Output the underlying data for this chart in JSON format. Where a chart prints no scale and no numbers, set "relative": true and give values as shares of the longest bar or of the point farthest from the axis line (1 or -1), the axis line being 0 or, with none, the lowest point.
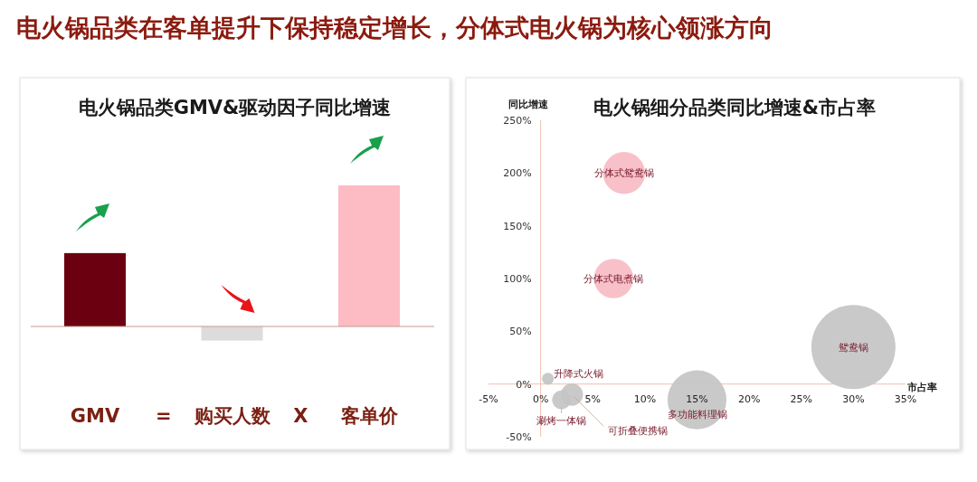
{
  "chart_data": [
    {
      "type": "bar",
      "title": "电火锅品类GMV&驱动因子同比增速",
      "categories": [
        "GMV",
        "购买人数",
        "客单价"
      ],
      "values": [
        0.52,
        -0.1,
        1
      ],
      "colors": [
        "#6b0011",
        "#dcdcdc",
        "#fdbcc4"
      ],
      "relative": true,
      "ref_lines": [
        {
          "axis": "y",
          "value": 0,
          "color": "#c49a8e"
        }
      ],
      "annotations": [
        "电火锅品类在客单提升下保持稳定增长，分体式电火锅为核心领涨方向",
        "=",
        "X"
      ]
    },
    {
      "type": "bubble",
      "title": "电火锅细分品类同比增速&市占率",
      "xlabel": "市占率",
      "ylabel": "同比增速",
      "xlim": [
        -5,
        35
      ],
      "xticks": [
        {
          "value": -5,
          "label": "-5%"
        },
        {
          "value": 0,
          "label": "0%"
        },
        {
          "value": 5,
          "label": "5%"
        },
        {
          "value": 10,
          "label": "10%"
        },
        {
          "value": 15,
          "label": "15%"
        },
        {
          "value": 20,
          "label": "20%"
        },
        {
          "value": 25,
          "label": "25%"
        },
        {
          "value": 30,
          "label": "30%"
        },
        {
          "value": 35,
          "label": "35%"
        }
      ],
      "ylim": [
        -50,
        250
      ],
      "yticks": [
        {
          "value": -50,
          "label": "-50%"
        },
        {
          "value": 0,
          "label": "0%"
        },
        {
          "value": 50,
          "label": "50%"
        },
        {
          "value": 100,
          "label": "100%"
        },
        {
          "value": 150,
          "label": "150%"
        },
        {
          "value": 200,
          "label": "200%"
        },
        {
          "value": 250,
          "label": "250%"
        }
      ],
      "series": [
        {
          "name": "分体式鸳鸯锅",
          "color": "#f7bcc4",
          "x": [
            8
          ],
          "values": [
            200
          ],
          "sizes": [
            0.25
          ]
        },
        {
          "name": "分体式电煮锅",
          "color": "#f7bcc4",
          "x": [
            7
          ],
          "values": [
            100
          ],
          "sizes": [
            0.22
          ]
        },
        {
          "name": "鸳鸯锅",
          "color": "#c4c4c4",
          "x": [
            30
          ],
          "values": [
            35
          ],
          "sizes": [
            1
          ]
        },
        {
          "name": "多功能料理锅",
          "color": "#c4c4c4",
          "x": [
            15
          ],
          "values": [
            -15
          ],
          "sizes": [
            0.49
          ]
        },
        {
          "name": "升降式火锅",
          "color": "#c4c4c4",
          "x": [
            0.7
          ],
          "values": [
            5
          ],
          "sizes": [
            0.02
          ]
        },
        {
          "name": "涮烤一体锅",
          "color": "#c4c4c4",
          "x": [
            2
          ],
          "values": [
            -15
          ],
          "sizes": [
            0.05
          ]
        },
        {
          "name": "可折叠便携锅",
          "color": "#c4c4c4",
          "x": [
            3
          ],
          "values": [
            -10
          ],
          "sizes": [
            0.07
          ]
        }
      ]
    }
  ]
}
